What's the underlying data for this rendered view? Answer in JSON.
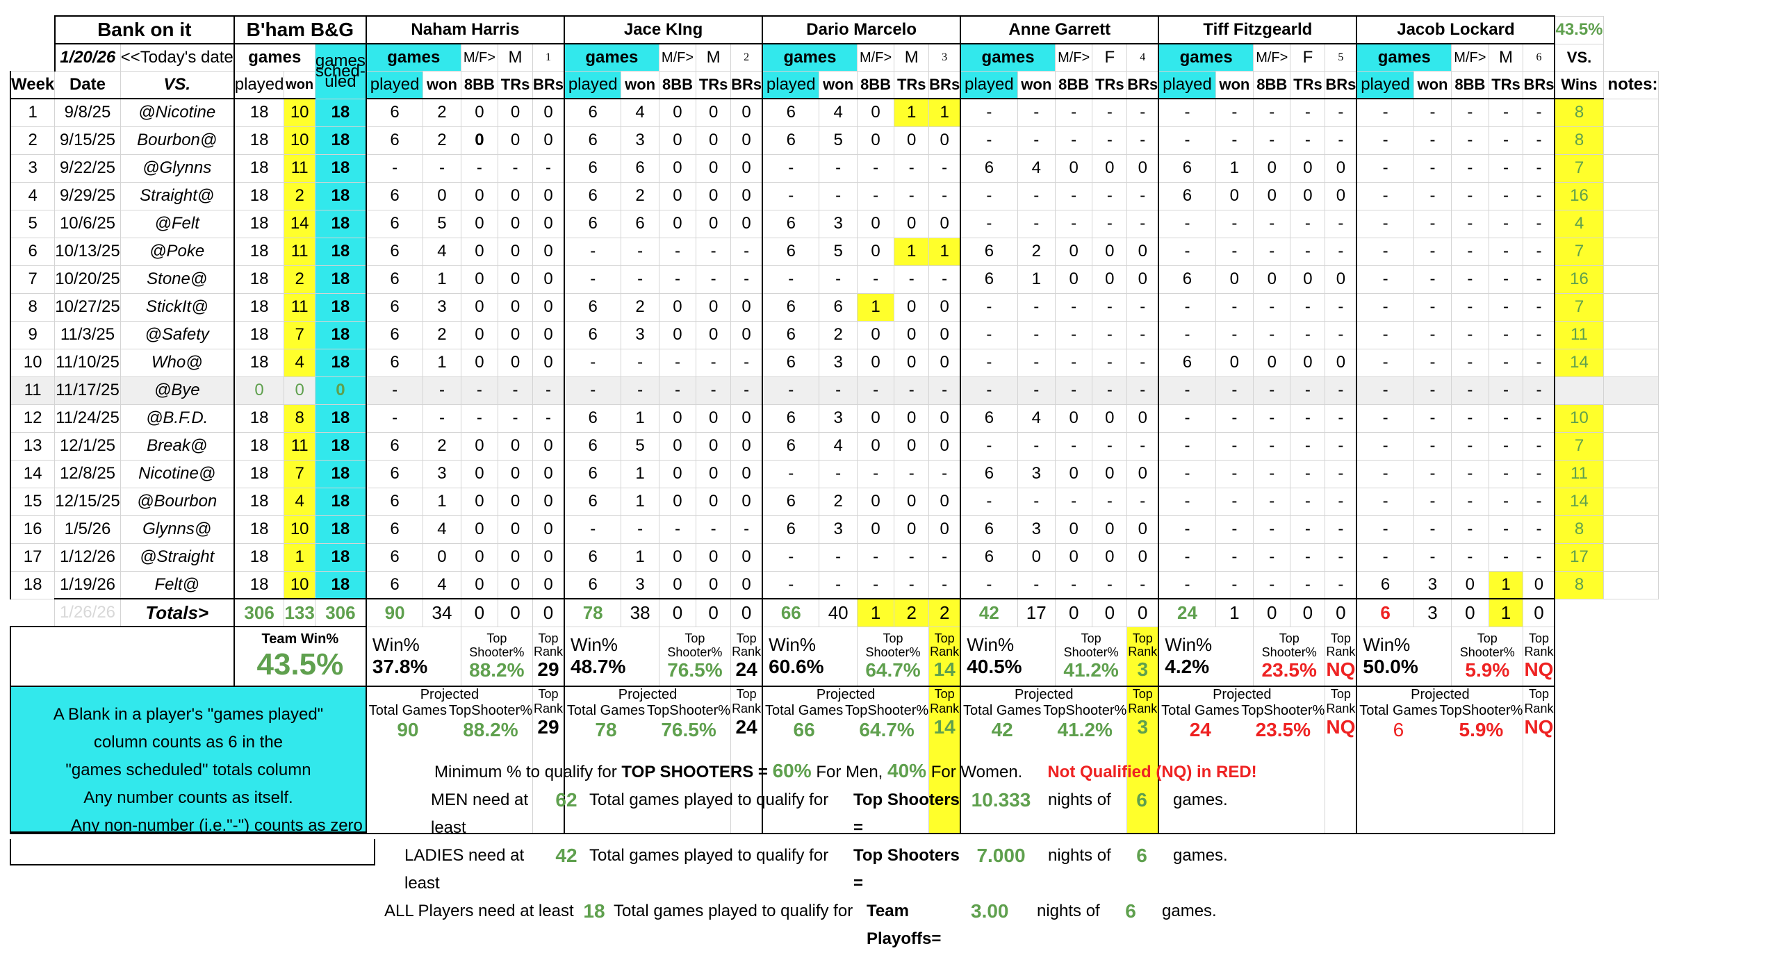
{
  "header": {
    "title": "Bank on it",
    "team": "B'ham B&G",
    "today_date": "1/20/26",
    "today_label": "<<Today's date",
    "games_label": "games",
    "played_label": "played",
    "won_label": "won",
    "games_sched_label": "games sched- uled",
    "week_label": "Week",
    "date_label": "Date",
    "vs_label": "VS.",
    "vs_right": "VS.",
    "wins_label": "Wins",
    "notes_label": "notes:",
    "team_pct_top": "43.5%"
  },
  "player_cols": {
    "games": "games",
    "mf": "M/F>",
    "played": "played",
    "won": "won",
    "bb": "8BB",
    "trs": "TRs",
    "brs": "BRs"
  },
  "players": [
    {
      "name": "Naham Harris",
      "gender": "M",
      "num": "1",
      "rows": [
        [
          "6",
          "2",
          "0",
          "0",
          "0"
        ],
        [
          "6",
          "2",
          "0",
          "0",
          "0"
        ],
        [
          "-",
          "-",
          "-",
          "-",
          "-"
        ],
        [
          "6",
          "0",
          "0",
          "0",
          "0"
        ],
        [
          "6",
          "5",
          "0",
          "0",
          "0"
        ],
        [
          "6",
          "4",
          "0",
          "0",
          "0"
        ],
        [
          "6",
          "1",
          "0",
          "0",
          "0"
        ],
        [
          "6",
          "3",
          "0",
          "0",
          "0"
        ],
        [
          "6",
          "2",
          "0",
          "0",
          "0"
        ],
        [
          "6",
          "1",
          "0",
          "0",
          "0"
        ],
        [
          "-",
          "-",
          "-",
          "-",
          "-"
        ],
        [
          "-",
          "-",
          "-",
          "-",
          "-"
        ],
        [
          "6",
          "2",
          "0",
          "0",
          "0"
        ],
        [
          "6",
          "3",
          "0",
          "0",
          "0"
        ],
        [
          "6",
          "1",
          "0",
          "0",
          "0"
        ],
        [
          "6",
          "4",
          "0",
          "0",
          "0"
        ],
        [
          "6",
          "0",
          "0",
          "0",
          "0"
        ],
        [
          "6",
          "4",
          "0",
          "0",
          "0"
        ]
      ],
      "totals": [
        "90",
        "34",
        "0",
        "0",
        "0"
      ],
      "win_pct": "37.8%",
      "top_pct": "88.2%",
      "top_rank": "29",
      "proj_games": "90",
      "proj_top": "88.2%",
      "proj_rank": "29"
    },
    {
      "name": "Jace KIng",
      "gender": "M",
      "num": "2",
      "rows": [
        [
          "6",
          "4",
          "0",
          "0",
          "0"
        ],
        [
          "6",
          "3",
          "0",
          "0",
          "0"
        ],
        [
          "6",
          "6",
          "0",
          "0",
          "0"
        ],
        [
          "6",
          "2",
          "0",
          "0",
          "0"
        ],
        [
          "6",
          "6",
          "0",
          "0",
          "0"
        ],
        [
          "-",
          "-",
          "-",
          "-",
          "-"
        ],
        [
          "-",
          "-",
          "-",
          "-",
          "-"
        ],
        [
          "6",
          "2",
          "0",
          "0",
          "0"
        ],
        [
          "6",
          "3",
          "0",
          "0",
          "0"
        ],
        [
          "-",
          "-",
          "-",
          "-",
          "-"
        ],
        [
          "-",
          "-",
          "-",
          "-",
          "-"
        ],
        [
          "6",
          "1",
          "0",
          "0",
          "0"
        ],
        [
          "6",
          "5",
          "0",
          "0",
          "0"
        ],
        [
          "6",
          "1",
          "0",
          "0",
          "0"
        ],
        [
          "6",
          "1",
          "0",
          "0",
          "0"
        ],
        [
          "-",
          "-",
          "-",
          "-",
          "-"
        ],
        [
          "6",
          "1",
          "0",
          "0",
          "0"
        ],
        [
          "6",
          "3",
          "0",
          "0",
          "0"
        ]
      ],
      "totals": [
        "78",
        "38",
        "0",
        "0",
        "0"
      ],
      "win_pct": "48.7%",
      "top_pct": "76.5%",
      "top_rank": "24",
      "proj_games": "78",
      "proj_top": "76.5%",
      "proj_rank": "24"
    },
    {
      "name": "Dario Marcelo",
      "gender": "M",
      "num": "3",
      "rows": [
        [
          "6",
          "4",
          "0",
          "1",
          "1"
        ],
        [
          "6",
          "5",
          "0",
          "0",
          "0"
        ],
        [
          "-",
          "-",
          "-",
          "-",
          "-"
        ],
        [
          "-",
          "-",
          "-",
          "-",
          "-"
        ],
        [
          "6",
          "3",
          "0",
          "0",
          "0"
        ],
        [
          "6",
          "5",
          "0",
          "1",
          "1"
        ],
        [
          "-",
          "-",
          "-",
          "-",
          "-"
        ],
        [
          "6",
          "6",
          "1",
          "0",
          "0"
        ],
        [
          "6",
          "2",
          "0",
          "0",
          "0"
        ],
        [
          "6",
          "3",
          "0",
          "0",
          "0"
        ],
        [
          "-",
          "-",
          "-",
          "-",
          "-"
        ],
        [
          "6",
          "3",
          "0",
          "0",
          "0"
        ],
        [
          "6",
          "4",
          "0",
          "0",
          "0"
        ],
        [
          "-",
          "-",
          "-",
          "-",
          "-"
        ],
        [
          "6",
          "2",
          "0",
          "0",
          "0"
        ],
        [
          "6",
          "3",
          "0",
          "0",
          "0"
        ],
        [
          "-",
          "-",
          "-",
          "-",
          "-"
        ],
        [
          "-",
          "-",
          "-",
          "-",
          "-"
        ]
      ],
      "totals": [
        "66",
        "40",
        "1",
        "2",
        "2"
      ],
      "win_pct": "60.6%",
      "top_pct": "64.7%",
      "top_rank": "14",
      "proj_games": "66",
      "proj_top": "64.7%",
      "proj_rank": "14"
    },
    {
      "name": "Anne Garrett",
      "gender": "F",
      "num": "4",
      "rows": [
        [
          "-",
          "-",
          "-",
          "-",
          "-"
        ],
        [
          "-",
          "-",
          "-",
          "-",
          "-"
        ],
        [
          "6",
          "4",
          "0",
          "0",
          "0"
        ],
        [
          "-",
          "-",
          "-",
          "-",
          "-"
        ],
        [
          "-",
          "-",
          "-",
          "-",
          "-"
        ],
        [
          "6",
          "2",
          "0",
          "0",
          "0"
        ],
        [
          "6",
          "1",
          "0",
          "0",
          "0"
        ],
        [
          "-",
          "-",
          "-",
          "-",
          "-"
        ],
        [
          "-",
          "-",
          "-",
          "-",
          "-"
        ],
        [
          "-",
          "-",
          "-",
          "-",
          "-"
        ],
        [
          "-",
          "-",
          "-",
          "-",
          "-"
        ],
        [
          "6",
          "4",
          "0",
          "0",
          "0"
        ],
        [
          "-",
          "-",
          "-",
          "-",
          "-"
        ],
        [
          "6",
          "3",
          "0",
          "0",
          "0"
        ],
        [
          "-",
          "-",
          "-",
          "-",
          "-"
        ],
        [
          "6",
          "3",
          "0",
          "0",
          "0"
        ],
        [
          "6",
          "0",
          "0",
          "0",
          "0"
        ],
        [
          "-",
          "-",
          "-",
          "-",
          "-"
        ]
      ],
      "totals": [
        "42",
        "17",
        "0",
        "0",
        "0"
      ],
      "win_pct": "40.5%",
      "top_pct": "41.2%",
      "top_rank": "3",
      "proj_games": "42",
      "proj_top": "41.2%",
      "proj_rank": "3"
    },
    {
      "name": "Tiff Fitzgearld",
      "gender": "F",
      "num": "5",
      "rows": [
        [
          "-",
          "-",
          "-",
          "-",
          "-"
        ],
        [
          "-",
          "-",
          "-",
          "-",
          "-"
        ],
        [
          "6",
          "1",
          "0",
          "0",
          "0"
        ],
        [
          "6",
          "0",
          "0",
          "0",
          "0"
        ],
        [
          "-",
          "-",
          "-",
          "-",
          "-"
        ],
        [
          "-",
          "-",
          "-",
          "-",
          "-"
        ],
        [
          "6",
          "0",
          "0",
          "0",
          "0"
        ],
        [
          "-",
          "-",
          "-",
          "-",
          "-"
        ],
        [
          "-",
          "-",
          "-",
          "-",
          "-"
        ],
        [
          "6",
          "0",
          "0",
          "0",
          "0"
        ],
        [
          "-",
          "-",
          "-",
          "-",
          "-"
        ],
        [
          "-",
          "-",
          "-",
          "-",
          "-"
        ],
        [
          "-",
          "-",
          "-",
          "-",
          "-"
        ],
        [
          "-",
          "-",
          "-",
          "-",
          "-"
        ],
        [
          "-",
          "-",
          "-",
          "-",
          "-"
        ],
        [
          "-",
          "-",
          "-",
          "-",
          "-"
        ],
        [
          "-",
          "-",
          "-",
          "-",
          "-"
        ],
        [
          "-",
          "-",
          "-",
          "-",
          "-"
        ]
      ],
      "totals": [
        "24",
        "1",
        "0",
        "0",
        "0"
      ],
      "win_pct": "4.2%",
      "top_pct": "23.5%",
      "top_rank": "NQ",
      "proj_games": "24",
      "proj_top": "23.5%",
      "proj_rank": "NQ"
    },
    {
      "name": "Jacob Lockard",
      "gender": "M",
      "num": "6",
      "rows": [
        [
          "-",
          "-",
          "-",
          "-",
          "-"
        ],
        [
          "-",
          "-",
          "-",
          "-",
          "-"
        ],
        [
          "-",
          "-",
          "-",
          "-",
          "-"
        ],
        [
          "-",
          "-",
          "-",
          "-",
          "-"
        ],
        [
          "-",
          "-",
          "-",
          "-",
          "-"
        ],
        [
          "-",
          "-",
          "-",
          "-",
          "-"
        ],
        [
          "-",
          "-",
          "-",
          "-",
          "-"
        ],
        [
          "-",
          "-",
          "-",
          "-",
          "-"
        ],
        [
          "-",
          "-",
          "-",
          "-",
          "-"
        ],
        [
          "-",
          "-",
          "-",
          "-",
          "-"
        ],
        [
          "-",
          "-",
          "-",
          "-",
          "-"
        ],
        [
          "-",
          "-",
          "-",
          "-",
          "-"
        ],
        [
          "-",
          "-",
          "-",
          "-",
          "-"
        ],
        [
          "-",
          "-",
          "-",
          "-",
          "-"
        ],
        [
          "-",
          "-",
          "-",
          "-",
          "-"
        ],
        [
          "-",
          "-",
          "-",
          "-",
          "-"
        ],
        [
          "-",
          "-",
          "-",
          "-",
          "-"
        ],
        [
          "6",
          "3",
          "0",
          "1",
          "0"
        ]
      ],
      "totals": [
        "6",
        "3",
        "0",
        "1",
        "0"
      ],
      "win_pct": "50.0%",
      "top_pct": "5.9%",
      "top_rank": "NQ",
      "proj_games": "6",
      "proj_top": "5.9%",
      "proj_rank": "NQ"
    }
  ],
  "weeks": [
    {
      "week": "1",
      "date": "9/8/25",
      "vs": "@Nicotine",
      "played": "18",
      "won": "10",
      "sched": "18",
      "vs_wins": "8"
    },
    {
      "week": "2",
      "date": "9/15/25",
      "vs": "Bourbon@",
      "played": "18",
      "won": "10",
      "sched": "18",
      "vs_wins": "8"
    },
    {
      "week": "3",
      "date": "9/22/25",
      "vs": "@Glynns",
      "played": "18",
      "won": "11",
      "sched": "18",
      "vs_wins": "7"
    },
    {
      "week": "4",
      "date": "9/29/25",
      "vs": "Straight@",
      "played": "18",
      "won": "2",
      "sched": "18",
      "vs_wins": "16"
    },
    {
      "week": "5",
      "date": "10/6/25",
      "vs": "@Felt",
      "played": "18",
      "won": "14",
      "sched": "18",
      "vs_wins": "4"
    },
    {
      "week": "6",
      "date": "10/13/25",
      "vs": "@Poke",
      "played": "18",
      "won": "11",
      "sched": "18",
      "vs_wins": "7"
    },
    {
      "week": "7",
      "date": "10/20/25",
      "vs": "Stone@",
      "played": "18",
      "won": "2",
      "sched": "18",
      "vs_wins": "16"
    },
    {
      "week": "8",
      "date": "10/27/25",
      "vs": "StickIt@",
      "played": "18",
      "won": "11",
      "sched": "18",
      "vs_wins": "7"
    },
    {
      "week": "9",
      "date": "11/3/25",
      "vs": "@Safety",
      "played": "18",
      "won": "7",
      "sched": "18",
      "vs_wins": "11"
    },
    {
      "week": "10",
      "date": "11/10/25",
      "vs": "Who@",
      "played": "18",
      "won": "4",
      "sched": "18",
      "vs_wins": "14"
    },
    {
      "week": "11",
      "date": "11/17/25",
      "vs": "@Bye",
      "played": "0",
      "won": "0",
      "sched": "0",
      "vs_wins": ""
    },
    {
      "week": "12",
      "date": "11/24/25",
      "vs": "@B.F.D.",
      "played": "18",
      "won": "8",
      "sched": "18",
      "vs_wins": "10"
    },
    {
      "week": "13",
      "date": "12/1/25",
      "vs": "Break@",
      "played": "18",
      "won": "11",
      "sched": "18",
      "vs_wins": "7"
    },
    {
      "week": "14",
      "date": "12/8/25",
      "vs": "Nicotine@",
      "played": "18",
      "won": "7",
      "sched": "18",
      "vs_wins": "11"
    },
    {
      "week": "15",
      "date": "12/15/25",
      "vs": "@Bourbon",
      "played": "18",
      "won": "4",
      "sched": "18",
      "vs_wins": "14"
    },
    {
      "week": "16",
      "date": "1/5/26",
      "vs": "Glynns@",
      "played": "18",
      "won": "10",
      "sched": "18",
      "vs_wins": "8"
    },
    {
      "week": "17",
      "date": "1/12/26",
      "vs": "@Straight",
      "played": "18",
      "won": "1",
      "sched": "18",
      "vs_wins": "17"
    },
    {
      "week": "18",
      "date": "1/19/26",
      "vs": "Felt@",
      "played": "18",
      "won": "10",
      "sched": "18",
      "vs_wins": "8"
    }
  ],
  "totals": {
    "date": "1/26/26",
    "label": "Totals>",
    "played": "306",
    "won": "133",
    "sched": "306"
  },
  "summary": {
    "team_win_label": "Team Win%",
    "team_win_pct": "43.5%",
    "win_pct_label": "Win%",
    "top_shooter_label": "Top Shooter%",
    "top_rank_label": "Top Rank",
    "projected_label": "Projected",
    "total_games_label": "Total Games",
    "topshooter_proj_label": "TopShooter%"
  },
  "note_box": [
    "A Blank in a player's \"games played\"",
    "column counts as    6    in the",
    "\"games scheduled\" totals column",
    "Any number counts as itself.",
    "Any non-number (i.e.\"-\") counts as zero"
  ],
  "rules": {
    "min_pct_prefix": "Minimum % to qualify for ",
    "top_shooters_bold": "TOP SHOOTERS =",
    "men_pct": "60%",
    "for_men": "For Men,",
    "women_pct": "40%",
    "for_women": "For Women.",
    "nq_note": "Not Qualified (NQ) in RED!",
    "men_need": "MEN need at least",
    "men_games": "62",
    "ladies_need": "LADIES need at least",
    "ladies_games": "42",
    "all_need": "ALL Players need at least",
    "all_games": "18",
    "total_games_text": "Total games played to qualify for",
    "top_shooters_eq": "Top Shooters =",
    "team_playoffs_eq": "Team Playoffs=",
    "men_nights": "10.333",
    "ladies_nights": "7.000",
    "all_nights": "3.00",
    "nights_of": "nights of",
    "six": "6",
    "games_word": "games."
  },
  "colors": {
    "cyan": "#32e8ec",
    "yellow": "#ffff2b",
    "green": "#5fa04e",
    "red": "#e22222"
  }
}
